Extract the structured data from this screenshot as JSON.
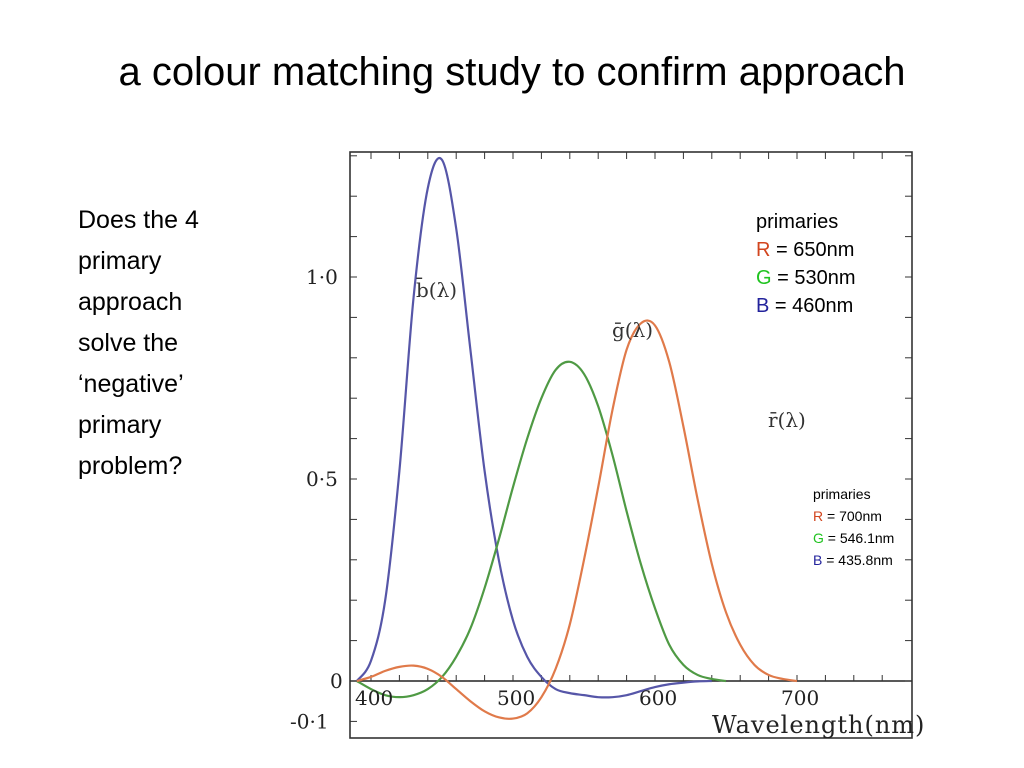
{
  "slide": {
    "title": "a colour matching study to confirm approach",
    "question_lines": [
      "Does the 4",
      "primary",
      "approach",
      "solve the",
      "‘negative’",
      "primary",
      "problem?"
    ]
  },
  "legend_1": {
    "heading": "primaries",
    "items": [
      {
        "letter": "R",
        "value": " = 650nm",
        "color": "#d2451e"
      },
      {
        "letter": "G",
        "value": " = 530nm",
        "color": "#1fc31f"
      },
      {
        "letter": "B",
        "value": " = 460nm",
        "color": "#23239c"
      }
    ]
  },
  "legend_2": {
    "heading": "primaries",
    "items": [
      {
        "letter": "R",
        "value": " = 700nm",
        "color": "#d2451e"
      },
      {
        "letter": "G",
        "value": " = 546.1nm",
        "color": "#1fc31f"
      },
      {
        "letter": "B",
        "value": " = 435.8nm",
        "color": "#23239c"
      }
    ]
  },
  "chart_data": {
    "type": "line",
    "xlabel": "Wavelength(nm)",
    "xlim": [
      385,
      780
    ],
    "ylim": [
      -0.14,
      1.31
    ],
    "x_ticks": [
      400,
      500,
      600,
      700
    ],
    "x_tick_labels": [
      "400",
      "500",
      "600",
      "700"
    ],
    "y_ticks": [
      -0.1,
      0,
      0.5,
      1.0
    ],
    "y_tick_labels": [
      "-0·1",
      "0",
      "0·5",
      "1·0"
    ],
    "grid": false,
    "series": [
      {
        "name": "b̄(λ)",
        "color": "#5656a8",
        "x": [
          390,
          400,
          410,
          420,
          430,
          440,
          450,
          460,
          470,
          480,
          490,
          500,
          510,
          520,
          530,
          540,
          550,
          560,
          570,
          580,
          590,
          600,
          610,
          620,
          630,
          640
        ],
        "y": [
          0,
          0.05,
          0.2,
          0.52,
          0.95,
          1.22,
          1.29,
          1.12,
          0.82,
          0.52,
          0.3,
          0.15,
          0.06,
          0.01,
          -0.02,
          -0.03,
          -0.035,
          -0.04,
          -0.04,
          -0.035,
          -0.025,
          -0.015,
          -0.008,
          -0.004,
          -0.001,
          0
        ]
      },
      {
        "name": "ḡ(λ)",
        "color": "#4f9a44",
        "x": [
          390,
          400,
          410,
          420,
          430,
          440,
          450,
          460,
          470,
          480,
          490,
          500,
          510,
          520,
          530,
          540,
          550,
          560,
          570,
          580,
          590,
          600,
          610,
          620,
          630,
          640,
          650
        ],
        "y": [
          0,
          -0.02,
          -0.035,
          -0.04,
          -0.035,
          -0.02,
          0.01,
          0.06,
          0.13,
          0.23,
          0.35,
          0.48,
          0.6,
          0.7,
          0.77,
          0.79,
          0.76,
          0.68,
          0.56,
          0.42,
          0.29,
          0.18,
          0.09,
          0.04,
          0.015,
          0.005,
          0
        ]
      },
      {
        "name": "r̄(λ)",
        "color": "#e07a4a",
        "x": [
          390,
          400,
          410,
          420,
          430,
          440,
          450,
          460,
          470,
          480,
          490,
          500,
          510,
          520,
          530,
          540,
          550,
          560,
          570,
          580,
          590,
          600,
          610,
          620,
          630,
          640,
          650,
          660,
          670,
          680,
          690,
          700
        ],
        "y": [
          0,
          0.01,
          0.025,
          0.035,
          0.038,
          0.03,
          0.01,
          -0.02,
          -0.05,
          -0.075,
          -0.09,
          -0.093,
          -0.08,
          -0.04,
          0.03,
          0.14,
          0.3,
          0.48,
          0.67,
          0.82,
          0.885,
          0.88,
          0.79,
          0.63,
          0.45,
          0.29,
          0.17,
          0.09,
          0.04,
          0.015,
          0.005,
          0
        ]
      }
    ]
  }
}
